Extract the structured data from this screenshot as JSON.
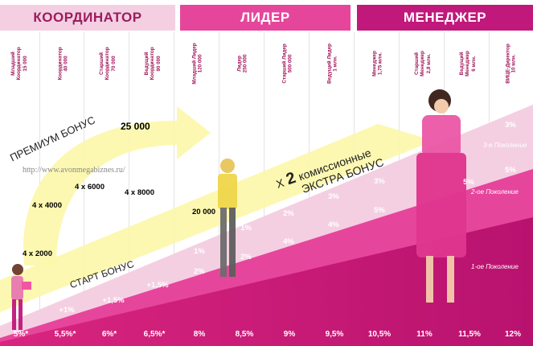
{
  "headers": [
    {
      "label": "КООРДИНАТОР"
    },
    {
      "label": "ЛИДЕР"
    },
    {
      "label": "МЕНЕДЖЕР"
    }
  ],
  "ranks": [
    {
      "label": "Младший\nКоординатор\n15 000"
    },
    {
      "label": "Координатор\n40 000"
    },
    {
      "label": "Старший\nКоординатор\n70 000"
    },
    {
      "label": "Ведущий\nКоординатор\n90 000"
    },
    {
      "label": "Младший Лидер\n120 000"
    },
    {
      "label": "Лидер\n250 000"
    },
    {
      "label": "Старший Лидер\n500 000"
    },
    {
      "label": "Ведущий Лидер\n1 млн."
    },
    {
      "label": "Менеджер\n1,75 млн."
    },
    {
      "label": "Старший\nМенеджер\n2,8 млн."
    },
    {
      "label": "Ведущий\nМенеджер\n6 млн."
    },
    {
      "label": "ВИЦЕ-Директор\n10 млн."
    }
  ],
  "base_percents": [
    "5%*",
    "5,5%*",
    "6%*",
    "6,5%*",
    "8%",
    "8,5%",
    "9%",
    "9,5%",
    "10,5%",
    "11%",
    "11,5%",
    "12%"
  ],
  "plus_bonuses": [
    "+1%",
    "+1,5%",
    "+1,5%"
  ],
  "first_generation_percents": [
    "1%",
    "2%",
    "2%",
    "4%",
    "4%",
    "5%",
    "5%"
  ],
  "second_generation_percents": [
    "1%",
    "2%",
    "3%",
    "5%"
  ],
  "third_generation_percent": "3%",
  "generation_labels": {
    "first": "1-ое Поколение",
    "second": "2-ое Поколение",
    "third": "3-е Поколение"
  },
  "bonus_labels": {
    "b1": "4 x 2000",
    "b2": "4 x 4000",
    "b3": "4 x 6000",
    "b4": "4 x 8000",
    "b5": "20 000",
    "b6": "25 000"
  },
  "banners": {
    "premium": "ПРЕМИУМ БОНУС",
    "start": "СТАРТ БОНУС",
    "extra_prefix": "Х",
    "extra_number": "2",
    "extra_line1": "комиссионные",
    "extra_line2": "ЭКСТРА БОНУС"
  },
  "watermark": "http://www.avonmegabiznes.ru/",
  "colors": {
    "light_pink": "#f4cfe2",
    "mid_pink": "#e6459c",
    "deep_magenta": "#c0187b",
    "banner_yellow": "#fdf7a8"
  }
}
